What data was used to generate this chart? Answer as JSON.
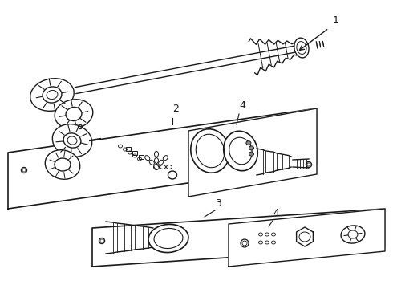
{
  "bg_color": "#ffffff",
  "line_color": "#1a1a1a",
  "lw": 1.0,
  "fig_width": 4.9,
  "fig_height": 3.6,
  "dpi": 100,
  "label1": "1",
  "label2": "2",
  "label3": "3",
  "label4a": "4",
  "label4b": "4",
  "font_size": 9
}
